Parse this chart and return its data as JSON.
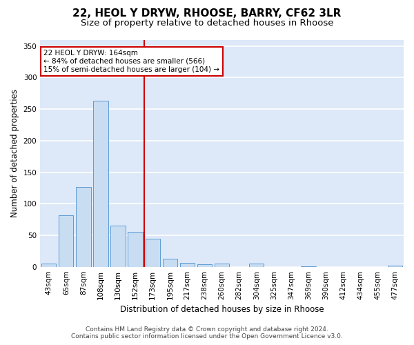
{
  "title1": "22, HEOL Y DRYW, RHOOSE, BARRY, CF62 3LR",
  "title2": "Size of property relative to detached houses in Rhoose",
  "xlabel": "Distribution of detached houses by size in Rhoose",
  "ylabel": "Number of detached properties",
  "categories": [
    "43sqm",
    "65sqm",
    "87sqm",
    "108sqm",
    "130sqm",
    "152sqm",
    "173sqm",
    "195sqm",
    "217sqm",
    "238sqm",
    "260sqm",
    "282sqm",
    "304sqm",
    "325sqm",
    "347sqm",
    "369sqm",
    "390sqm",
    "412sqm",
    "434sqm",
    "455sqm",
    "477sqm"
  ],
  "values": [
    5,
    82,
    127,
    263,
    65,
    55,
    45,
    13,
    6,
    4,
    5,
    0,
    5,
    0,
    0,
    1,
    0,
    0,
    0,
    0,
    2
  ],
  "bar_color": "#c9ddf2",
  "bar_edge_color": "#5b9bd5",
  "vline_color": "#cc0000",
  "vline_x": 5.5,
  "annotation_text": "22 HEOL Y DRYW: 164sqm\n← 84% of detached houses are smaller (566)\n15% of semi-detached houses are larger (104) →",
  "annotation_box_color": "#ffffff",
  "annotation_box_edge": "#cc0000",
  "footer1": "Contains HM Land Registry data © Crown copyright and database right 2024.",
  "footer2": "Contains public sector information licensed under the Open Government Licence v3.0.",
  "ylim": [
    0,
    360
  ],
  "yticks": [
    0,
    50,
    100,
    150,
    200,
    250,
    300,
    350
  ],
  "background_color": "#dde8f8",
  "grid_color": "#ffffff",
  "title1_fontsize": 11,
  "title2_fontsize": 9.5,
  "tick_fontsize": 7.5,
  "ylabel_fontsize": 8.5,
  "xlabel_fontsize": 8.5,
  "annotation_fontsize": 7.5,
  "footer_fontsize": 6.5
}
